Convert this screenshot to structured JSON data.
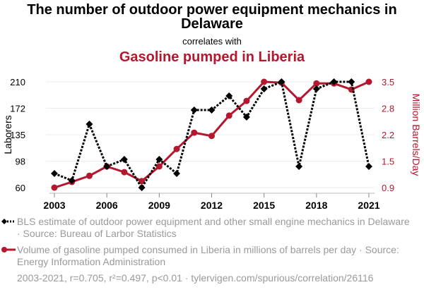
{
  "header": {
    "title": "The number of outdoor power equipment mechanics in Delaware",
    "subtitle": "correlates with",
    "title2": "Gasoline pumped in Liberia"
  },
  "legend": [
    {
      "label": "BLS estimate of outdoor power equipment and other small engine mechanics in Delaware · Source: Bureau of Larbor Statistics"
    },
    {
      "label": "Volume of gasoline pumped consumed in Liberia in millions of barrels per day · Source: Energy Information Administration"
    }
  ],
  "footer": "2003-2021, r=0.705, r²=0.497, p<0.01 · tylervigen.com/spurious/correlation/26116",
  "colors": {
    "series1": "#000000",
    "series2": "#b5172f",
    "legend_text": "#9a9a9a",
    "grid": "#eeeeee"
  },
  "chart_data": {
    "type": "line",
    "title": "The number of outdoor power equipment mechanics in Delaware correlates with Gasoline pumped in Liberia",
    "x": [
      2003,
      2004,
      2005,
      2006,
      2007,
      2008,
      2009,
      2010,
      2011,
      2012,
      2013,
      2014,
      2015,
      2016,
      2017,
      2018,
      2019,
      2020,
      2021
    ],
    "xticks": [
      "2003",
      "2006",
      "2009",
      "2012",
      "2015",
      "2018",
      "2021"
    ],
    "xlim": [
      2003,
      2021
    ],
    "ylabel_left": "Laborers",
    "ylabel_right": "Million Barrels/Day",
    "yticks_left": [
      "60",
      "98",
      "135",
      "172",
      "210"
    ],
    "ylim_left": [
      60,
      210
    ],
    "yticks_right": [
      "0.9",
      "1.5",
      "2.2",
      "2.8",
      "3.5"
    ],
    "ylim_right": [
      0.9,
      3.5
    ],
    "grid": true,
    "legend_position": "bottom",
    "series": [
      {
        "name": "BLS estimate of outdoor power equipment and other small engine mechanics in Delaware",
        "axis": "left",
        "style": "dotted-diamond",
        "values": [
          80,
          70,
          150,
          90,
          100,
          60,
          100,
          80,
          170,
          170,
          190,
          160,
          200,
          210,
          90,
          200,
          210,
          210,
          90
        ]
      },
      {
        "name": "Volume of gasoline pumped consumed in Liberia in millions of barrels per day",
        "axis": "right",
        "style": "solid-circle",
        "values": [
          0.9,
          1.04,
          1.19,
          1.42,
          1.28,
          1.06,
          1.42,
          1.85,
          2.25,
          2.17,
          2.67,
          3.03,
          3.5,
          3.48,
          3.05,
          3.46,
          3.46,
          3.31,
          3.5
        ]
      }
    ]
  }
}
